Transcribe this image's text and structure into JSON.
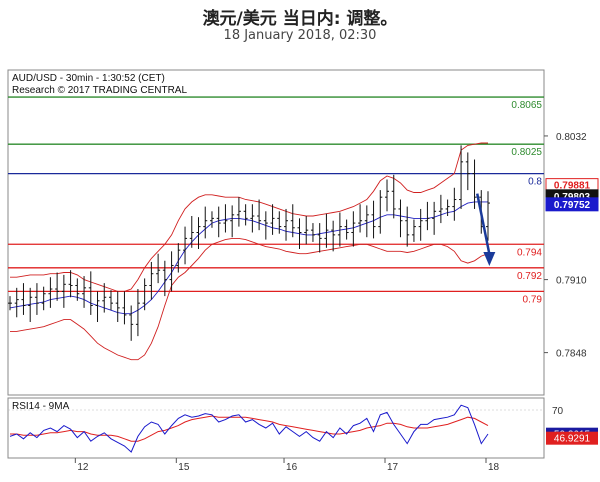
{
  "header": {
    "title": "澳元/美元 当日内: 调整。",
    "subtitle": "18 January 2018, 02:30"
  },
  "chart_data": {
    "type": "candlestick",
    "info": [
      "AUD/USD - 30min - 1:30:52 (CET)",
      "Research © 2017 TRADING CENTRAL"
    ],
    "x_ticks": [
      {
        "label": "12",
        "index": 10
      },
      {
        "label": "15",
        "index": 25
      },
      {
        "label": "16",
        "index": 41
      },
      {
        "label": "17",
        "index": 56
      },
      {
        "label": "18",
        "index": 71
      }
    ],
    "n_bars": 72,
    "ylim": [
      0.7812,
      0.8088
    ],
    "y_ticks": [
      "0.8032",
      "0.7910",
      "0.7848"
    ],
    "colors": {
      "resistance": "#2e8b2e",
      "pivot": "#1a2a9a",
      "support": "#e02020",
      "price_black": "#111111",
      "price_blue": "#1a1acc",
      "price_red": "#e02020",
      "bollinger": "#d02020",
      "ma": "#2020c0",
      "arrow": "#1a3a9a"
    },
    "levels": [
      {
        "value": 0.8065,
        "label": "0.8065",
        "kind": "resistance"
      },
      {
        "value": 0.8025,
        "label": "0.8025",
        "kind": "resistance"
      },
      {
        "value": 0.8,
        "label": "0.8",
        "kind": "pivot"
      },
      {
        "value": 0.794,
        "label": "0.794",
        "kind": "support"
      },
      {
        "value": 0.792,
        "label": "0.792",
        "kind": "support"
      },
      {
        "value": 0.79,
        "label": "0.79",
        "kind": "support"
      }
    ],
    "price_labels": [
      {
        "value": 0.79881,
        "label": "0.79881",
        "kind": "red"
      },
      {
        "value": 0.79803,
        "label": "0.79803",
        "kind": "black"
      },
      {
        "value": 0.79752,
        "label": "0.79752",
        "kind": "blue"
      }
    ],
    "close": [
      0.789,
      0.7893,
      0.7888,
      0.7895,
      0.789,
      0.7898,
      0.7902,
      0.79,
      0.7906,
      0.7905,
      0.7898,
      0.7903,
      0.7888,
      0.7892,
      0.7895,
      0.789,
      0.7886,
      0.788,
      0.7872,
      0.789,
      0.7905,
      0.7915,
      0.7918,
      0.791,
      0.7922,
      0.7935,
      0.7945,
      0.795,
      0.7955,
      0.796,
      0.7962,
      0.7958,
      0.796,
      0.7965,
      0.7968,
      0.7962,
      0.7964,
      0.796,
      0.7958,
      0.7962,
      0.7955,
      0.796,
      0.7954,
      0.795,
      0.7952,
      0.7948,
      0.7945,
      0.7952,
      0.7948,
      0.7955,
      0.795,
      0.7958,
      0.796,
      0.7965,
      0.7955,
      0.798,
      0.7985,
      0.797,
      0.796,
      0.7948,
      0.7955,
      0.796,
      0.7962,
      0.7968,
      0.797,
      0.7972,
      0.7978,
      0.801,
      0.8,
      0.798,
      0.7955,
      0.7975
    ],
    "bb_upper": [
      0.7912,
      0.7912,
      0.7913,
      0.7914,
      0.7914,
      0.7914,
      0.7915,
      0.7915,
      0.7916,
      0.7916,
      0.7914,
      0.791,
      0.7908,
      0.7906,
      0.7904,
      0.7902,
      0.79,
      0.79,
      0.7902,
      0.791,
      0.792,
      0.7928,
      0.7934,
      0.794,
      0.7948,
      0.796,
      0.797,
      0.7976,
      0.798,
      0.7982,
      0.7982,
      0.7981,
      0.798,
      0.798,
      0.798,
      0.7978,
      0.7977,
      0.7976,
      0.7974,
      0.7972,
      0.797,
      0.7968,
      0.7966,
      0.7965,
      0.7964,
      0.7964,
      0.7965,
      0.7966,
      0.7967,
      0.7968,
      0.797,
      0.7972,
      0.7975,
      0.7978,
      0.7985,
      0.7994,
      0.7998,
      0.7996,
      0.7992,
      0.7986,
      0.7984,
      0.7984,
      0.7986,
      0.7988,
      0.7992,
      0.7996,
      0.8,
      0.802,
      0.8024,
      0.8025,
      0.8026,
      0.8026
    ],
    "bb_lower": [
      0.7866,
      0.7866,
      0.7867,
      0.7868,
      0.7869,
      0.787,
      0.7872,
      0.7874,
      0.7876,
      0.7876,
      0.7872,
      0.7868,
      0.7862,
      0.7856,
      0.7852,
      0.7849,
      0.7846,
      0.7844,
      0.7842,
      0.7842,
      0.7846,
      0.7856,
      0.787,
      0.7888,
      0.7905,
      0.7912,
      0.7916,
      0.7922,
      0.7928,
      0.7935,
      0.794,
      0.7942,
      0.7944,
      0.7945,
      0.7945,
      0.7944,
      0.7942,
      0.794,
      0.7938,
      0.7937,
      0.7936,
      0.7934,
      0.7933,
      0.7932,
      0.7932,
      0.7933,
      0.7934,
      0.7935,
      0.7936,
      0.7937,
      0.7938,
      0.7939,
      0.794,
      0.794,
      0.7938,
      0.7936,
      0.7934,
      0.7934,
      0.7934,
      0.7933,
      0.7934,
      0.7936,
      0.7938,
      0.794,
      0.794,
      0.7938,
      0.7934,
      0.7926,
      0.7924,
      0.7926,
      0.793,
      0.7932
    ],
    "ma": [
      0.7886,
      0.7887,
      0.7888,
      0.7889,
      0.789,
      0.7891,
      0.7893,
      0.7894,
      0.7895,
      0.7896,
      0.7895,
      0.7893,
      0.789,
      0.7888,
      0.7886,
      0.7884,
      0.7882,
      0.7881,
      0.7881,
      0.7884,
      0.7888,
      0.7893,
      0.79,
      0.7908,
      0.7916,
      0.7926,
      0.7935,
      0.7942,
      0.7948,
      0.7953,
      0.7958,
      0.796,
      0.7961,
      0.7962,
      0.7962,
      0.7961,
      0.796,
      0.7958,
      0.7956,
      0.7954,
      0.7953,
      0.7951,
      0.795,
      0.7949,
      0.7948,
      0.7948,
      0.7949,
      0.795,
      0.7951,
      0.7952,
      0.7953,
      0.7954,
      0.7956,
      0.7958,
      0.796,
      0.7963,
      0.7965,
      0.7965,
      0.7964,
      0.7963,
      0.7962,
      0.7962,
      0.7962,
      0.7963,
      0.7965,
      0.7967,
      0.7968,
      0.7972,
      0.7975,
      0.7976,
      0.7976,
      0.7976
    ],
    "arrow": {
      "from": {
        "index": 69.4,
        "value": 0.7983
      },
      "to": {
        "index": 71.2,
        "value": 0.7925
      }
    },
    "rsi": {
      "label": "RSI14 - 9MA",
      "ylim": [
        30,
        80
      ],
      "y_ticks": [
        "70"
      ],
      "badges": [
        {
          "value": 50.2615,
          "label": "50.2615",
          "kind": "blue"
        },
        {
          "value": 46.9291,
          "label": "46.9291",
          "kind": "red"
        }
      ],
      "rsi_values": [
        48,
        50,
        46,
        51,
        47,
        53,
        55,
        52,
        57,
        54,
        47,
        52,
        44,
        48,
        51,
        46,
        43,
        40,
        35,
        48,
        56,
        60,
        58,
        50,
        57,
        63,
        66,
        64,
        65,
        67,
        66,
        60,
        62,
        65,
        66,
        60,
        62,
        58,
        55,
        59,
        50,
        56,
        52,
        48,
        52,
        47,
        44,
        52,
        47,
        55,
        50,
        57,
        59,
        63,
        52,
        66,
        68,
        58,
        50,
        42,
        52,
        58,
        58,
        62,
        63,
        64,
        66,
        74,
        72,
        58,
        42,
        50
      ],
      "ma_values": [
        50,
        50,
        49,
        49,
        49,
        50,
        51,
        51,
        52,
        53,
        52,
        52,
        50,
        49,
        49,
        49,
        48,
        46,
        44,
        44,
        46,
        49,
        52,
        53,
        55,
        57,
        60,
        62,
        63,
        64,
        65,
        64,
        64,
        64,
        64,
        64,
        63,
        62,
        61,
        60,
        58,
        57,
        56,
        55,
        54,
        53,
        52,
        51,
        50,
        50,
        51,
        52,
        53,
        55,
        56,
        57,
        59,
        59,
        58,
        56,
        55,
        55,
        55,
        56,
        57,
        58,
        60,
        62,
        64,
        63,
        60,
        57
      ]
    }
  }
}
